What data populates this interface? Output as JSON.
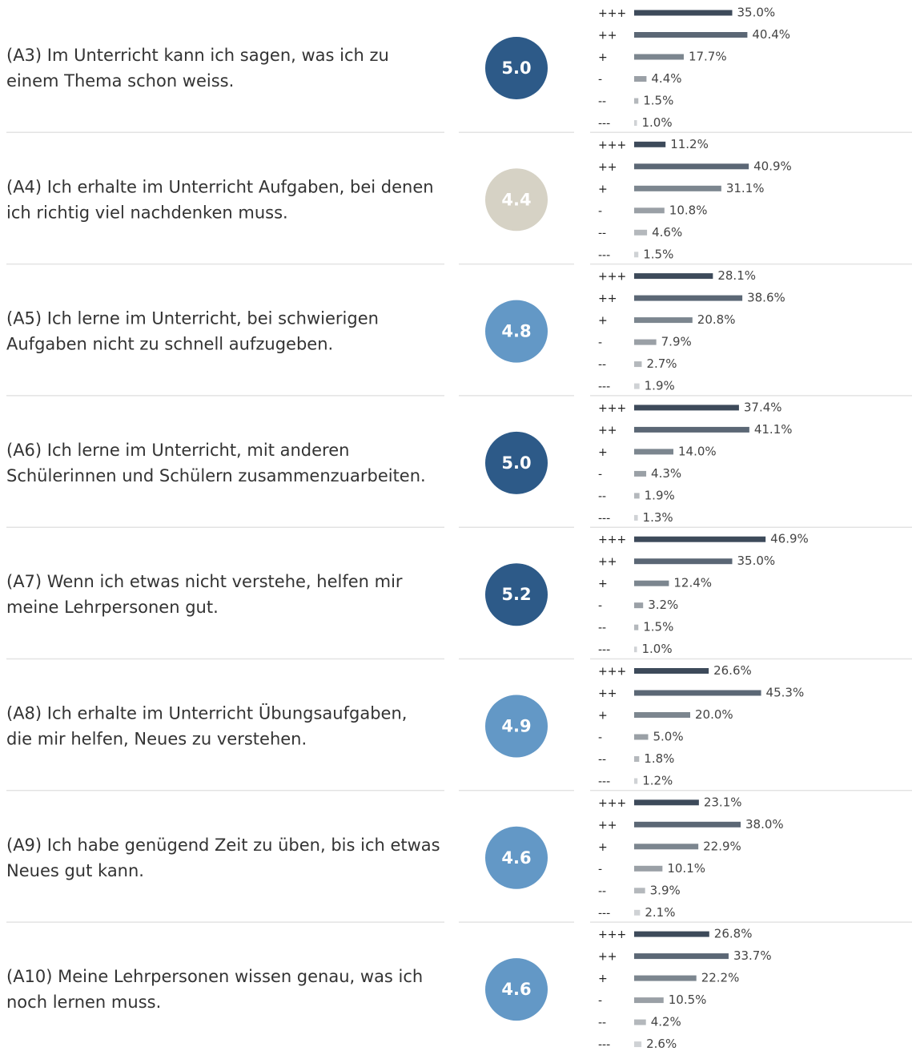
{
  "chart_data": [
    {
      "type": "bar",
      "orientation": "horizontal",
      "title": [
        "(A3) Im Unterricht kann ich sagen, was ich zu",
        "einem Thema schon weiss."
      ],
      "score": 5.0,
      "score_label": "5.0",
      "score_color": "#2d5a88",
      "categories": [
        "+++",
        "++",
        "+",
        "-",
        "--",
        "---"
      ],
      "values": [
        35.0,
        40.4,
        17.7,
        4.4,
        1.5,
        1.0
      ],
      "value_labels": [
        "35.0%",
        "40.4%",
        "17.7%",
        "4.4%",
        "1.5%",
        "1.0%"
      ],
      "colors": [
        "#3d4a5a",
        "#5b6775",
        "#7c868f",
        "#9aa0a6",
        "#b4b8bc",
        "#cfd2d5"
      ],
      "xlim": [
        0,
        50
      ]
    },
    {
      "type": "bar",
      "orientation": "horizontal",
      "title": [
        "(A4) Ich erhalte im Unterricht Aufgaben, bei denen",
        "ich richtig viel nachdenken muss."
      ],
      "score": 4.4,
      "score_label": "4.4",
      "score_color": "#d6d2c5",
      "categories": [
        "+++",
        "++",
        "+",
        "-",
        "--",
        "---"
      ],
      "values": [
        11.2,
        40.9,
        31.1,
        10.8,
        4.6,
        1.5
      ],
      "value_labels": [
        "11.2%",
        "40.9%",
        "31.1%",
        "10.8%",
        "4.6%",
        "1.5%"
      ],
      "colors": [
        "#3d4a5a",
        "#5b6775",
        "#7c868f",
        "#9aa0a6",
        "#b4b8bc",
        "#cfd2d5"
      ],
      "xlim": [
        0,
        50
      ]
    },
    {
      "type": "bar",
      "orientation": "horizontal",
      "title": [
        "(A5) Ich lerne im Unterricht, bei schwierigen",
        "Aufgaben nicht zu schnell aufzugeben."
      ],
      "score": 4.8,
      "score_label": "4.8",
      "score_color": "#6398c6",
      "categories": [
        "+++",
        "++",
        "+",
        "-",
        "--",
        "---"
      ],
      "values": [
        28.1,
        38.6,
        20.8,
        7.9,
        2.7,
        1.9
      ],
      "value_labels": [
        "28.1%",
        "38.6%",
        "20.8%",
        "7.9%",
        "2.7%",
        "1.9%"
      ],
      "colors": [
        "#3d4a5a",
        "#5b6775",
        "#7c868f",
        "#9aa0a6",
        "#b4b8bc",
        "#cfd2d5"
      ],
      "xlim": [
        0,
        50
      ]
    },
    {
      "type": "bar",
      "orientation": "horizontal",
      "title": [
        "(A6) Ich lerne im Unterricht, mit anderen",
        "Schülerinnen und Schülern zusammenzuarbeiten."
      ],
      "score": 5.0,
      "score_label": "5.0",
      "score_color": "#2d5a88",
      "categories": [
        "+++",
        "++",
        "+",
        "-",
        "--",
        "---"
      ],
      "values": [
        37.4,
        41.1,
        14.0,
        4.3,
        1.9,
        1.3
      ],
      "value_labels": [
        "37.4%",
        "41.1%",
        "14.0%",
        "4.3%",
        "1.9%",
        "1.3%"
      ],
      "colors": [
        "#3d4a5a",
        "#5b6775",
        "#7c868f",
        "#9aa0a6",
        "#b4b8bc",
        "#cfd2d5"
      ],
      "xlim": [
        0,
        50
      ]
    },
    {
      "type": "bar",
      "orientation": "horizontal",
      "title": [
        "(A7) Wenn ich etwas nicht verstehe, helfen mir",
        "meine Lehrpersonen gut."
      ],
      "score": 5.2,
      "score_label": "5.2",
      "score_color": "#2d5a88",
      "categories": [
        "+++",
        "++",
        "+",
        "-",
        "--",
        "---"
      ],
      "values": [
        46.9,
        35.0,
        12.4,
        3.2,
        1.5,
        1.0
      ],
      "value_labels": [
        "46.9%",
        "35.0%",
        "12.4%",
        "3.2%",
        "1.5%",
        "1.0%"
      ],
      "colors": [
        "#3d4a5a",
        "#5b6775",
        "#7c868f",
        "#9aa0a6",
        "#b4b8bc",
        "#cfd2d5"
      ],
      "xlim": [
        0,
        50
      ]
    },
    {
      "type": "bar",
      "orientation": "horizontal",
      "title": [
        "(A8) Ich erhalte im Unterricht Übungsaufgaben,",
        "die mir helfen, Neues zu verstehen."
      ],
      "score": 4.9,
      "score_label": "4.9",
      "score_color": "#6398c6",
      "categories": [
        "+++",
        "++",
        "+",
        "-",
        "--",
        "---"
      ],
      "values": [
        26.6,
        45.3,
        20.0,
        5.0,
        1.8,
        1.2
      ],
      "value_labels": [
        "26.6%",
        "45.3%",
        "20.0%",
        "5.0%",
        "1.8%",
        "1.2%"
      ],
      "colors": [
        "#3d4a5a",
        "#5b6775",
        "#7c868f",
        "#9aa0a6",
        "#b4b8bc",
        "#cfd2d5"
      ],
      "xlim": [
        0,
        50
      ]
    },
    {
      "type": "bar",
      "orientation": "horizontal",
      "title": [
        "(A9) Ich habe genügend Zeit zu üben, bis ich etwas",
        "Neues gut kann."
      ],
      "score": 4.6,
      "score_label": "4.6",
      "score_color": "#6398c6",
      "categories": [
        "+++",
        "++",
        "+",
        "-",
        "--",
        "---"
      ],
      "values": [
        23.1,
        38.0,
        22.9,
        10.1,
        3.9,
        2.1
      ],
      "value_labels": [
        "23.1%",
        "38.0%",
        "22.9%",
        "10.1%",
        "3.9%",
        "2.1%"
      ],
      "colors": [
        "#3d4a5a",
        "#5b6775",
        "#7c868f",
        "#9aa0a6",
        "#b4b8bc",
        "#cfd2d5"
      ],
      "xlim": [
        0,
        50
      ]
    },
    {
      "type": "bar",
      "orientation": "horizontal",
      "title": [
        "(A10) Meine Lehrpersonen wissen genau, was ich",
        "noch lernen muss."
      ],
      "score": 4.6,
      "score_label": "4.6",
      "score_color": "#6398c6",
      "categories": [
        "+++",
        "++",
        "+",
        "-",
        "--",
        "---"
      ],
      "values": [
        26.8,
        33.7,
        22.2,
        10.5,
        4.2,
        2.6
      ],
      "value_labels": [
        "26.8%",
        "33.7%",
        "22.2%",
        "10.5%",
        "4.2%",
        "2.6%"
      ],
      "colors": [
        "#3d4a5a",
        "#5b6775",
        "#7c868f",
        "#9aa0a6",
        "#b4b8bc",
        "#cfd2d5"
      ],
      "xlim": [
        0,
        50
      ]
    }
  ]
}
